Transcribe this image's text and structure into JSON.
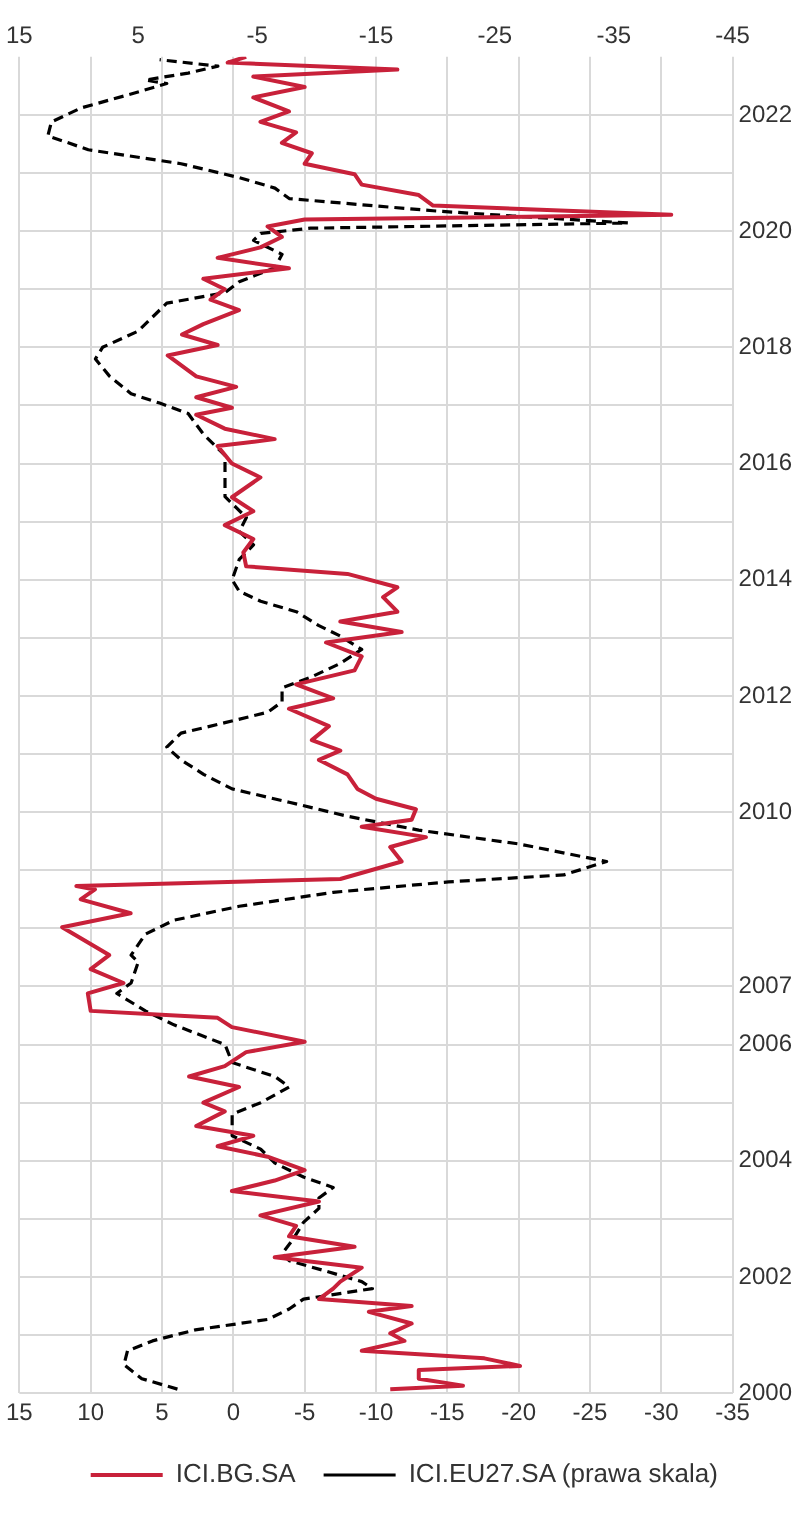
{
  "chart_data": {
    "type": "line",
    "orientation": "horizontal",
    "ylim": [
      2000,
      2023
    ],
    "yticks": [
      2000,
      {
        "value": 2001,
        "label": null
      },
      2002,
      {
        "value": 2003,
        "label": null
      },
      2004,
      {
        "value": 2005,
        "label": null
      },
      2006,
      2007,
      {
        "value": 2008,
        "label": null
      },
      {
        "value": 2009,
        "label": null
      },
      2010,
      {
        "value": 2011,
        "label": null
      },
      2012,
      {
        "value": 2013,
        "label": null
      },
      2014,
      {
        "value": 2015,
        "label": null
      },
      2016,
      {
        "value": 2017,
        "label": null
      },
      2018,
      {
        "value": 2019,
        "label": null
      },
      2020,
      {
        "value": 2021,
        "label": null
      },
      2022
    ],
    "xlim": [
      15,
      -35
    ],
    "xticks": [
      15,
      10,
      5,
      0,
      -5,
      -10,
      -15,
      -20,
      -25,
      -30,
      -35
    ],
    "x2lim": [
      15,
      -45
    ],
    "x2ticks": [
      15,
      5,
      -5,
      -15,
      -25,
      -35,
      -45
    ],
    "grid": true,
    "legend": "bottom",
    "marker": "none",
    "series": [
      {
        "name": "ICI.BG.SA",
        "color": "#c8213a",
        "line_style": "solid",
        "x": [
          2000.07,
          2000.13,
          2000.25,
          2000.4,
          2000.47,
          2000.6,
          2000.73,
          2000.9,
          2001.03,
          2001.2,
          2001.4,
          2001.5,
          2001.62,
          2001.8,
          2001.92,
          2002.16,
          2002.34,
          2002.52,
          2002.7,
          2002.88,
          2003.06,
          2003.3,
          2003.48,
          2003.66,
          2003.84,
          2004.07,
          2004.25,
          2004.43,
          2004.6,
          2004.85,
          2005.0,
          2005.27,
          2005.45,
          2005.63,
          2005.87,
          2006.05,
          2006.3,
          2006.46,
          2006.58,
          2006.88,
          2007.06,
          2007.3,
          2007.54,
          2008.02,
          2008.26,
          2008.5,
          2008.67,
          2008.73,
          2008.85,
          2009.15,
          2009.4,
          2009.57,
          2009.75,
          2009.87,
          2010.05,
          2010.23,
          2010.4,
          2010.65,
          2010.9,
          2011.06,
          2011.24,
          2011.48,
          2011.78,
          2011.96,
          2012.2,
          2012.44,
          2012.68,
          2012.92,
          2013.1,
          2013.28,
          2013.45,
          2013.7,
          2013.87,
          2014.1,
          2014.23,
          2014.47,
          2014.7,
          2014.94,
          2015.18,
          2015.42,
          2015.76,
          2016.0,
          2016.3,
          2016.42,
          2016.6,
          2016.84,
          2016.96,
          2017.14,
          2017.32,
          2017.5,
          2017.68,
          2017.86,
          2018.04,
          2018.22,
          2018.4,
          2018.64,
          2018.82,
          2019.0,
          2019.18,
          2019.36,
          2019.54,
          2019.72,
          2019.9,
          2020.08,
          2020.2,
          2020.28,
          2020.44,
          2020.62,
          2020.8,
          2020.98,
          2021.16,
          2021.34,
          2021.52,
          2021.7,
          2021.88,
          2022.06,
          2022.3,
          2022.48,
          2022.66,
          2022.78,
          2022.9,
          2023.0
        ],
        "values": [
          -11.0,
          -16.1,
          -13.0,
          -13.0,
          -20.1,
          -17.6,
          -9.0,
          -12.0,
          -11.0,
          -12.5,
          -9.5,
          -12.5,
          -6.0,
          -7.0,
          -7.5,
          -9.0,
          -2.9,
          -8.5,
          -3.9,
          -4.4,
          -1.9,
          -6.0,
          0.1,
          -2.9,
          -5.0,
          -2.4,
          1.1,
          -1.4,
          2.6,
          0.6,
          2.1,
          -0.4,
          3.1,
          0.6,
          -0.9,
          -5.0,
          0.1,
          1.1,
          10.0,
          10.2,
          7.7,
          10.0,
          8.7,
          12.0,
          7.2,
          10.7,
          9.7,
          11.0,
          -7.5,
          -11.8,
          -11.0,
          -13.5,
          -9.0,
          -12.5,
          -12.8,
          -10.0,
          -8.7,
          -8.0,
          -6.0,
          -7.5,
          -5.5,
          -6.7,
          -3.9,
          -7.0,
          -4.4,
          -8.5,
          -9.0,
          -6.5,
          -11.8,
          -7.5,
          -11.5,
          -10.5,
          -11.5,
          -8.0,
          -0.9,
          -0.7,
          -1.4,
          0.6,
          -1.4,
          0.1,
          -1.9,
          0.1,
          1.1,
          -2.9,
          0.6,
          2.6,
          0.1,
          2.6,
          -0.2,
          2.6,
          3.6,
          4.6,
          1.1,
          3.6,
          2.1,
          -0.4,
          1.6,
          0.6,
          2.1,
          -3.9,
          1.1,
          -1.9,
          -3.4,
          -2.4,
          -5.0,
          -30.7,
          -14.0,
          -13.0,
          -9.0,
          -8.5,
          -5.0,
          -5.5,
          -3.4,
          -4.4,
          -1.9,
          -3.9,
          -1.4,
          -5.0,
          -1.4,
          -11.5,
          0.4,
          -0.9
        ]
      },
      {
        "name": "ICI.EU27.SA (prawa skala)",
        "color": "#000000",
        "line_style": "dashed",
        "axis": "x2",
        "x": [
          2000.07,
          2000.25,
          2000.49,
          2000.73,
          2000.9,
          2001.09,
          2001.27,
          2001.45,
          2001.62,
          2001.8,
          2001.92,
          2002.1,
          2002.28,
          2002.4,
          2002.64,
          2002.94,
          2003.18,
          2003.36,
          2003.54,
          2003.72,
          2003.96,
          2004.2,
          2004.43,
          2004.8,
          2005.0,
          2005.27,
          2005.45,
          2005.69,
          2006.0,
          2006.34,
          2006.58,
          2006.88,
          2007.06,
          2007.42,
          2007.54,
          2007.9,
          2008.14,
          2008.38,
          2008.62,
          2008.8,
          2008.92,
          2009.15,
          2009.45,
          2009.69,
          2009.93,
          2010.17,
          2010.4,
          2010.65,
          2010.9,
          2011.12,
          2011.36,
          2011.54,
          2011.72,
          2011.9,
          2012.14,
          2012.32,
          2012.56,
          2012.8,
          2013.03,
          2013.21,
          2013.45,
          2013.63,
          2013.8,
          2014.0,
          2014.35,
          2014.6,
          2014.83,
          2015.07,
          2015.43,
          2015.78,
          2016.14,
          2016.5,
          2016.86,
          2017.04,
          2017.2,
          2017.5,
          2017.8,
          2018.0,
          2018.28,
          2018.52,
          2018.76,
          2018.94,
          2019.13,
          2019.37,
          2019.6,
          2019.84,
          2019.96,
          2020.05,
          2020.14,
          2020.26,
          2020.35,
          2020.56,
          2020.74,
          2020.92,
          2021.16,
          2021.4,
          2021.64,
          2021.88,
          2022.12,
          2022.36,
          2022.54,
          2022.6,
          2022.72,
          2022.84,
          2022.95
        ],
        "values": [
          1.7,
          4.7,
          6.2,
          5.9,
          3.8,
          0.2,
          -5.9,
          -7.7,
          -8.9,
          -14.7,
          -13.8,
          -10.8,
          -7.7,
          -7.1,
          -8.0,
          -8.9,
          -10.2,
          -10.2,
          -11.4,
          -8.9,
          -6.5,
          -5.3,
          -2.9,
          -2.9,
          -5.3,
          -7.7,
          -6.5,
          -2.9,
          -2.3,
          2.0,
          4.4,
          6.8,
          5.6,
          5.0,
          5.6,
          4.4,
          2.0,
          -3.5,
          -11.4,
          -21.1,
          -30.8,
          -34.4,
          -27.1,
          -18.6,
          -12.6,
          -7.7,
          -2.9,
          -0.5,
          1.4,
          2.6,
          1.4,
          -2.3,
          -5.9,
          -7.1,
          -7.1,
          -9.5,
          -12.0,
          -13.8,
          -12.0,
          -10.2,
          -8.3,
          -5.3,
          -3.5,
          -2.9,
          -3.5,
          -4.7,
          -3.5,
          -4.1,
          -2.3,
          -2.3,
          -2.3,
          -0.5,
          0.8,
          3.2,
          5.6,
          7.4,
          8.6,
          8.0,
          5.0,
          3.8,
          2.6,
          -2.3,
          -3.5,
          -6.5,
          -7.1,
          -4.7,
          -5.3,
          -9.5,
          -36.2,
          -26.5,
          -19.8,
          -7.7,
          -6.5,
          -3.5,
          1.4,
          9.2,
          12.6,
          12.3,
          9.8,
          5.6,
          2.6,
          4.4,
          0.8,
          -1.7,
          3.2
        ]
      }
    ]
  }
}
